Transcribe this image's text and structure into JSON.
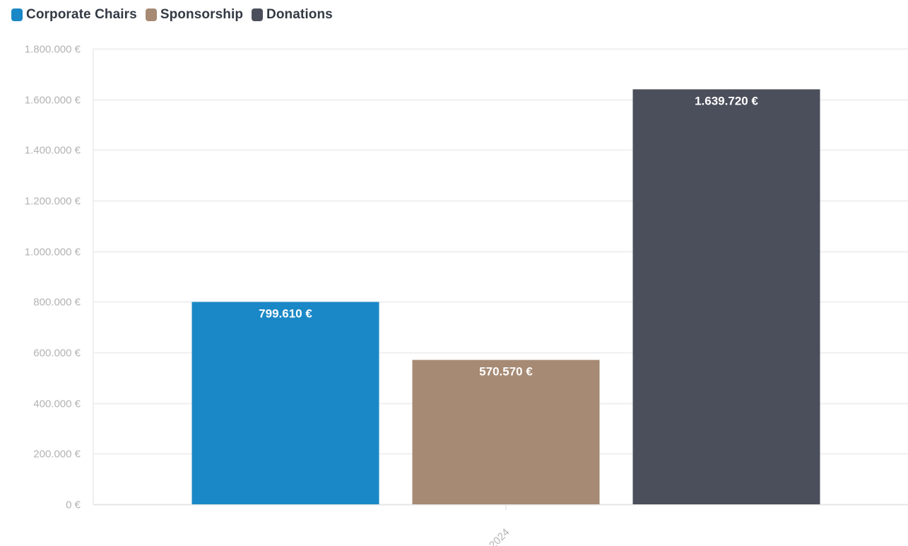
{
  "legend": [
    {
      "label": "Corporate Chairs",
      "color": "#1a88c7"
    },
    {
      "label": "Sponsorship",
      "color": "#a68a74"
    },
    {
      "label": "Donations",
      "color": "#4b4f5c"
    }
  ],
  "chart_data": {
    "type": "bar",
    "categories": [
      "2024"
    ],
    "series": [
      {
        "name": "Corporate Chairs",
        "values": [
          799610
        ],
        "value_label": "799.610 €",
        "color": "#1a88c7"
      },
      {
        "name": "Sponsorship",
        "values": [
          570570
        ],
        "value_label": "570.570 €",
        "color": "#a68a74"
      },
      {
        "name": "Donations",
        "values": [
          1639720
        ],
        "value_label": "1.639.720 €",
        "color": "#4b4f5c"
      }
    ],
    "ylim": [
      0,
      1800000
    ],
    "yticks": [
      {
        "value": 0,
        "label": "0 €"
      },
      {
        "value": 200000,
        "label": "200.000 €"
      },
      {
        "value": 400000,
        "label": "400.000 €"
      },
      {
        "value": 600000,
        "label": "600.000 €"
      },
      {
        "value": 800000,
        "label": "800.000 €"
      },
      {
        "value": 1000000,
        "label": "1.000.000 €"
      },
      {
        "value": 1200000,
        "label": "1.200.000 €"
      },
      {
        "value": 1400000,
        "label": "1.400.000 €"
      },
      {
        "value": 1600000,
        "label": "1.600.000 €"
      },
      {
        "value": 1800000,
        "label": "1.800.000 €"
      }
    ],
    "grid": true,
    "legend_position": "top-left"
  }
}
